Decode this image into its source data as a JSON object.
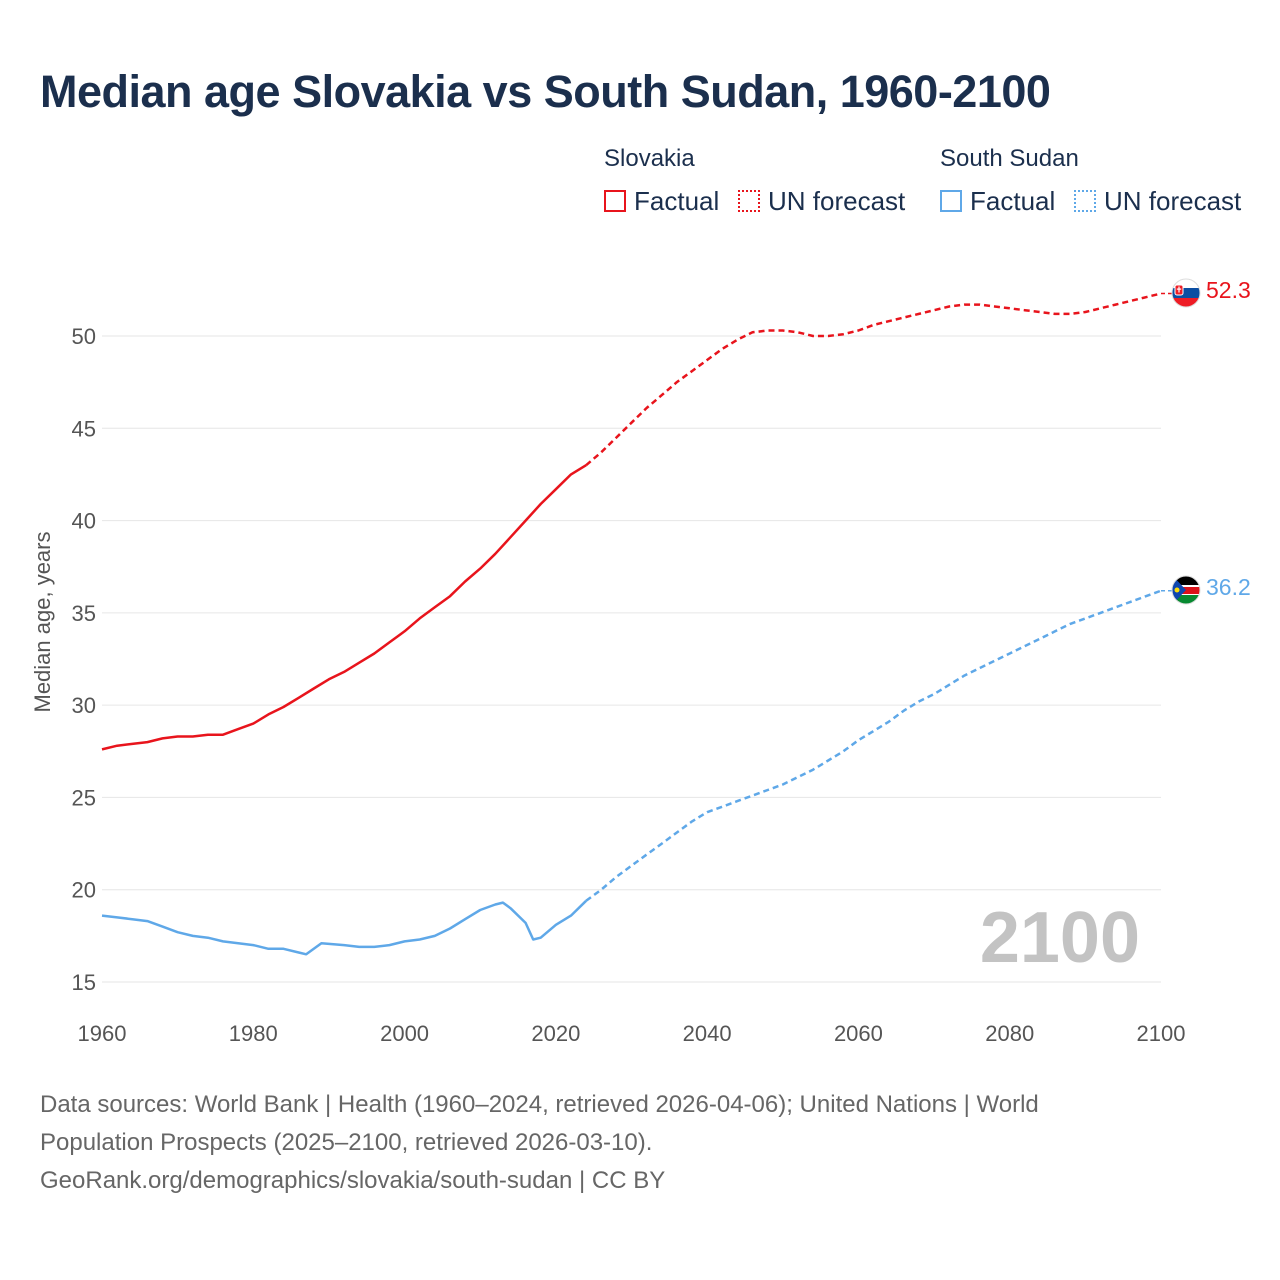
{
  "title": "Median age Slovakia vs South Sudan, 1960-2100",
  "legend": {
    "slovakia": {
      "name": "Slovakia",
      "factual": "Factual",
      "forecast": "UN forecast"
    },
    "south_sudan": {
      "name": "South Sudan",
      "factual": "Factual",
      "forecast": "UN forecast"
    }
  },
  "source": {
    "line1": "Data sources: World Bank | Health (1960–2024, retrieved 2026-04-06); United Nations | World",
    "line2": "Population Prospects (2025–2100, retrieved 2026-03-10).",
    "line3": "GeoRank.org/demographics/slovakia/south-sudan | CC BY"
  },
  "colors": {
    "slovakia": "#e8141c",
    "south_sudan": "#5fa8e8",
    "grid": "#e6e6e6",
    "text": "#1b2f4d"
  },
  "chart_data": {
    "type": "line",
    "title": "Median age Slovakia vs South Sudan, 1960-2100",
    "xlabel": "",
    "ylabel": "Median age, years",
    "xlim": [
      1960,
      2100
    ],
    "ylim": [
      15,
      53
    ],
    "xticks": [
      1960,
      1980,
      2000,
      2020,
      2040,
      2060,
      2080,
      2100
    ],
    "yticks": [
      15,
      20,
      25,
      30,
      35,
      40,
      45,
      50
    ],
    "year_label": "2100",
    "series": [
      {
        "name": "Slovakia",
        "color": "#e8141c",
        "end_label": "52.3",
        "factual": {
          "x": [
            1960,
            1962,
            1964,
            1966,
            1968,
            1970,
            1972,
            1974,
            1976,
            1978,
            1980,
            1982,
            1984,
            1986,
            1988,
            1990,
            1992,
            1994,
            1996,
            1998,
            2000,
            2002,
            2004,
            2006,
            2008,
            2010,
            2012,
            2014,
            2016,
            2018,
            2020,
            2022,
            2024
          ],
          "y": [
            27.6,
            27.8,
            27.9,
            28.0,
            28.2,
            28.3,
            28.3,
            28.4,
            28.4,
            28.7,
            29.0,
            29.5,
            29.9,
            30.4,
            30.9,
            31.4,
            31.8,
            32.3,
            32.8,
            33.4,
            34.0,
            34.7,
            35.3,
            35.9,
            36.7,
            37.4,
            38.2,
            39.1,
            40.0,
            40.9,
            41.7,
            42.5,
            43.0
          ],
          "style": "solid"
        },
        "forecast": {
          "x": [
            2024,
            2026,
            2028,
            2030,
            2032,
            2034,
            2036,
            2038,
            2040,
            2042,
            2044,
            2046,
            2048,
            2050,
            2052,
            2054,
            2056,
            2058,
            2060,
            2062,
            2064,
            2066,
            2068,
            2070,
            2072,
            2074,
            2076,
            2078,
            2080,
            2082,
            2084,
            2086,
            2088,
            2090,
            2092,
            2094,
            2096,
            2098,
            2100
          ],
          "y": [
            43.0,
            43.7,
            44.5,
            45.3,
            46.1,
            46.8,
            47.5,
            48.1,
            48.7,
            49.3,
            49.8,
            50.2,
            50.3,
            50.3,
            50.2,
            50.0,
            50.0,
            50.1,
            50.3,
            50.6,
            50.8,
            51.0,
            51.2,
            51.4,
            51.6,
            51.7,
            51.7,
            51.6,
            51.5,
            51.4,
            51.3,
            51.2,
            51.2,
            51.3,
            51.5,
            51.7,
            51.9,
            52.1,
            52.3
          ],
          "style": "dashed"
        }
      },
      {
        "name": "South Sudan",
        "color": "#5fa8e8",
        "end_label": "36.2",
        "factual": {
          "x": [
            1960,
            1962,
            1964,
            1966,
            1968,
            1970,
            1972,
            1974,
            1976,
            1978,
            1980,
            1982,
            1984,
            1986,
            1987,
            1989,
            1992,
            1994,
            1996,
            1998,
            2000,
            2002,
            2004,
            2006,
            2008,
            2010,
            2012,
            2013,
            2014,
            2016,
            2017,
            2018,
            2020,
            2022,
            2024
          ],
          "y": [
            18.6,
            18.5,
            18.4,
            18.3,
            18.0,
            17.7,
            17.5,
            17.4,
            17.2,
            17.1,
            17.0,
            16.8,
            16.8,
            16.6,
            16.5,
            17.1,
            17.0,
            16.9,
            16.9,
            17.0,
            17.2,
            17.3,
            17.5,
            17.9,
            18.4,
            18.9,
            19.2,
            19.3,
            19.0,
            18.2,
            17.3,
            17.4,
            18.1,
            18.6,
            19.4
          ],
          "style": "solid"
        },
        "forecast": {
          "x": [
            2024,
            2026,
            2028,
            2030,
            2032,
            2034,
            2036,
            2038,
            2040,
            2042,
            2044,
            2046,
            2048,
            2050,
            2052,
            2054,
            2056,
            2058,
            2060,
            2062,
            2064,
            2066,
            2068,
            2070,
            2072,
            2074,
            2076,
            2078,
            2080,
            2082,
            2084,
            2086,
            2088,
            2090,
            2092,
            2094,
            2096,
            2098,
            2100
          ],
          "y": [
            19.4,
            20.0,
            20.7,
            21.3,
            21.9,
            22.5,
            23.1,
            23.7,
            24.2,
            24.5,
            24.8,
            25.1,
            25.4,
            25.7,
            26.1,
            26.5,
            27.0,
            27.5,
            28.1,
            28.6,
            29.1,
            29.7,
            30.2,
            30.6,
            31.1,
            31.6,
            32.0,
            32.4,
            32.8,
            33.2,
            33.6,
            34.0,
            34.4,
            34.7,
            35.0,
            35.3,
            35.6,
            35.9,
            36.2
          ],
          "style": "dashed"
        }
      }
    ]
  }
}
